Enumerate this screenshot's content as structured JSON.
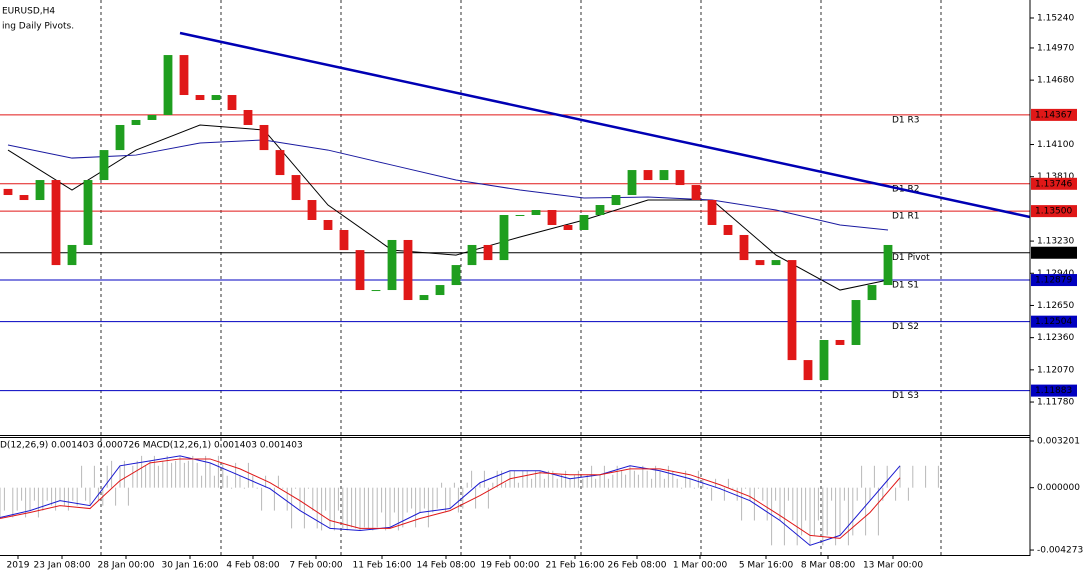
{
  "chart_data": [
    {
      "type": "candlestick",
      "title": "EURUSD,H4",
      "subtitle": "ing Daily Pivots.",
      "up_color": "#1f9e1f",
      "down_color": "#e01818",
      "open": [
        1.137,
        1.13645,
        1.136,
        1.1378,
        1.13014,
        1.13195,
        1.1378,
        1.1405,
        1.14276,
        1.14321,
        1.14366,
        1.14906,
        1.14546,
        1.14501,
        1.14546,
        1.14411,
        1.14276,
        1.1405,
        1.13825,
        1.136,
        1.1342,
        1.1333,
        1.13149,
        1.12789,
        1.12789,
        1.1324,
        1.12699,
        1.12744,
        1.12834,
        1.13014,
        1.13195,
        1.13059,
        1.13465,
        1.13465,
        1.1351,
        1.13375,
        1.1333,
        1.13465,
        1.13555,
        1.13645,
        1.1387,
        1.1378,
        1.1387,
        1.13735,
        1.136,
        1.13375,
        1.13285,
        1.13059,
        1.13014,
        1.13059,
        1.12158,
        1.11978,
        1.12339,
        1.12294,
        1.12699,
        1.12834
      ],
      "close": [
        1.13645,
        1.136,
        1.1378,
        1.13014,
        1.13195,
        1.1378,
        1.1405,
        1.14276,
        1.14321,
        1.14366,
        1.14906,
        1.14546,
        1.14501,
        1.14546,
        1.14411,
        1.14276,
        1.1405,
        1.13825,
        1.136,
        1.1342,
        1.1333,
        1.13149,
        1.12789,
        1.12789,
        1.1324,
        1.12699,
        1.12744,
        1.12834,
        1.13014,
        1.13195,
        1.13059,
        1.13465,
        1.13465,
        1.1351,
        1.13375,
        1.1333,
        1.13465,
        1.13555,
        1.13645,
        1.1387,
        1.1378,
        1.1387,
        1.13735,
        1.136,
        1.13375,
        1.13285,
        1.13059,
        1.13014,
        1.13059,
        1.12158,
        1.11978,
        1.12339,
        1.12294,
        1.12699,
        1.12834,
        1.13195
      ],
      "series": [
        {
          "color": "#000000",
          "line_width": 1,
          "x": [
            0,
            4,
            8,
            12,
            16,
            20,
            24,
            28,
            32,
            36,
            40,
            44,
            48,
            52,
            55
          ],
          "values": [
            1.1405,
            1.1369,
            1.1405,
            1.14276,
            1.14231,
            1.13555,
            1.13149,
            1.13104,
            1.13267,
            1.1342,
            1.136,
            1.136,
            1.13104,
            1.12789,
            1.12879
          ]
        },
        {
          "color": "#1a1aa0",
          "line_width": 1,
          "x": [
            0,
            4,
            8,
            12,
            16,
            20,
            24,
            28,
            32,
            36,
            40,
            44,
            48,
            52,
            55
          ],
          "values": [
            1.14096,
            1.13978,
            1.14005,
            1.14114,
            1.14141,
            1.1405,
            1.13915,
            1.1378,
            1.1369,
            1.13618,
            1.13627,
            1.136,
            1.1351,
            1.13375,
            1.1333
          ]
        },
        {
          "color": "#0000b4",
          "line_width": 2.5,
          "x": [
            10.75,
            63.875
          ],
          "values": [
            1.15105,
            1.13447
          ]
        }
      ],
      "levels": {
        "names": [
          "D1 R3",
          "D1 R2",
          "D1 R1",
          "D1 Pivot",
          "D1 S1",
          "D1 S2",
          "D1 S3"
        ],
        "values": [
          1.14367,
          1.13746,
          1.135,
          1.13125,
          1.12879,
          1.12504,
          1.11883
        ],
        "value_labels": [
          "1.14367",
          "1.13746",
          "1.13500",
          "1.13125",
          "1.12879",
          "1.12504",
          "1.11883"
        ],
        "colors": [
          "#e01818",
          "#e01818",
          "#e01818",
          "#000000",
          "#0000c0",
          "#0000c0",
          "#0000c0"
        ]
      },
      "xlim": [
        -0.5,
        63.875
      ],
      "ylim": [
        1.11483,
        1.15402
      ],
      "yticks": [
        {
          "value": 1.1524,
          "label": "1.15240"
        },
        {
          "value": 1.1497,
          "label": "1.14970"
        },
        {
          "value": 1.1468,
          "label": "1.14680"
        },
        {
          "value": 1.141,
          "label": "1.14100"
        },
        {
          "value": 1.1381,
          "label": "1.13810"
        },
        {
          "value": 1.1323,
          "label": "1.13230"
        },
        {
          "value": 1.1294,
          "label": "1.12940"
        },
        {
          "value": 1.1265,
          "label": "1.12650"
        },
        {
          "value": 1.1236,
          "label": "1.12360"
        },
        {
          "value": 1.1207,
          "label": "1.12070"
        },
        {
          "value": 1.1178,
          "label": "1.11780"
        }
      ],
      "xgrid": [
        5.8125,
        13.3125,
        20.8125,
        28.3125,
        35.8125,
        43.3125,
        50.8125,
        58.3125
      ],
      "xticks": [
        {
          "value": 0.625,
          "label": "2019"
        },
        {
          "value": 3.375,
          "label": "23 Jan 08:00"
        },
        {
          "value": 7.375,
          "label": "28 Jan 00:00"
        },
        {
          "value": 11.375,
          "label": "30 Jan 16:00"
        },
        {
          "value": 15.3125,
          "label": "4 Feb 08:00"
        },
        {
          "value": 19.25,
          "label": "7 Feb 00:00"
        },
        {
          "value": 23.375,
          "label": "11 Feb 16:00"
        },
        {
          "value": 27.375,
          "label": "14 Feb 08:00"
        },
        {
          "value": 31.375,
          "label": "19 Feb 00:00"
        },
        {
          "value": 35.4375,
          "label": "21 Feb 16:00"
        },
        {
          "value": 39.3125,
          "label": "26 Feb 08:00"
        },
        {
          "value": 43.25,
          "label": "1 Mar 00:00"
        },
        {
          "value": 47.375,
          "label": "5 Mar 16:00"
        },
        {
          "value": 51.25,
          "label": "8 Mar 08:00"
        },
        {
          "value": 55.3125,
          "label": "13 Mar 00:00"
        }
      ]
    },
    {
      "type": "macd",
      "title": "D(12,26,9) 0.001403 0.000726 MACD(12,26,1) 0.001403 0.001403",
      "histogram_color": "#b8b8b8",
      "x": [
        -0.5,
        1.375,
        3.25,
        5.125,
        7,
        8.875,
        10.75,
        12.625,
        14.5,
        16.375,
        18.25,
        20.125,
        22,
        23.875,
        25.75,
        27.625,
        29.5,
        31.375,
        33.25,
        35.125,
        37,
        38.875,
        40.75,
        42.625,
        44.5,
        46.375,
        48.25,
        50.125,
        52,
        53.875,
        55.75
      ],
      "series": [
        {
          "color": "#1a1ad0",
          "values": [
            -0.00204,
            -0.00157,
            -0.00089,
            -0.00123,
            0.0015,
            0.00184,
            0.00218,
            0.0017,
            0.00082,
            -7e-05,
            -0.00157,
            -0.00279,
            -0.00293,
            -0.00272,
            -0.0017,
            -0.00143,
            0.00034,
            0.00116,
            0.00116,
            0.00061,
            0.00089,
            0.0015,
            0.00116,
            0.00061,
            -7e-05,
            -0.00089,
            -0.00225,
            -0.00395,
            -0.00327,
            -0.00089,
            0.0015
          ]
        },
        {
          "color": "#e01818",
          "values": [
            -0.00211,
            -0.0017,
            -0.00123,
            -0.00143,
            0.00048,
            0.0017,
            0.00197,
            0.00197,
            0.00129,
            0.00034,
            -0.00089,
            -0.00225,
            -0.00279,
            -0.00279,
            -0.00211,
            -0.00157,
            -0.00054,
            0.00061,
            0.00102,
            0.00089,
            0.00089,
            0.00129,
            0.00129,
            0.00089,
            0.0002,
            -0.00061,
            -0.00191,
            -0.00327,
            -0.00347,
            -0.0017,
            0.00068
          ]
        }
      ],
      "xlim": [
        -0.5,
        63.875
      ],
      "ylim": [
        -0.004613,
        0.003405
      ],
      "yticks": [
        0.003201,
        {
          "value": 0,
          "label": "0.000000"
        },
        -0.004273
      ]
    }
  ]
}
